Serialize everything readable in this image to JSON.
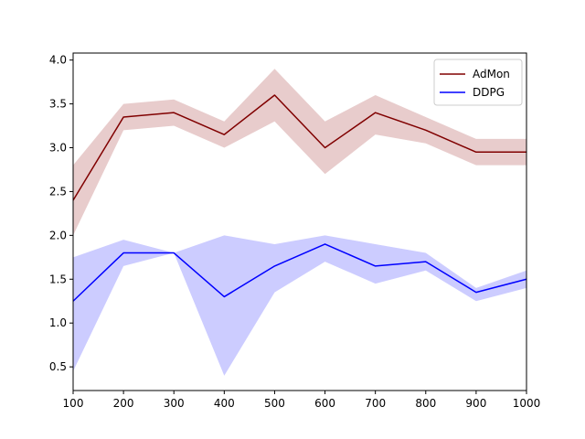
{
  "chart_data": {
    "type": "line",
    "title": "",
    "xlabel": "",
    "ylabel": "",
    "x": [
      100,
      200,
      300,
      400,
      500,
      600,
      700,
      800,
      900,
      1000
    ],
    "xlim": [
      100,
      1000
    ],
    "ylim": [
      0.23,
      4.08
    ],
    "xticks": [
      100,
      200,
      300,
      400,
      500,
      600,
      700,
      800,
      900,
      1000
    ],
    "yticks": [
      0.5,
      1.0,
      1.5,
      2.0,
      2.5,
      3.0,
      3.5,
      4.0
    ],
    "ytick_labels": [
      "0.5",
      "1.0",
      "1.5",
      "2.0",
      "2.5",
      "3.0",
      "3.5",
      "4.0"
    ],
    "grid": false,
    "legend_position": "top-right",
    "series": [
      {
        "name": "AdMon",
        "color": "#800000",
        "band_color": "#e8cccc",
        "values": [
          2.4,
          3.35,
          3.4,
          3.15,
          3.6,
          3.0,
          3.4,
          3.2,
          2.95,
          2.95
        ],
        "lower": [
          2.0,
          3.2,
          3.25,
          3.0,
          3.3,
          2.7,
          3.15,
          3.05,
          2.8,
          2.8
        ],
        "upper": [
          2.8,
          3.5,
          3.55,
          3.3,
          3.9,
          3.3,
          3.6,
          3.35,
          3.1,
          3.1
        ]
      },
      {
        "name": "DDPG",
        "color": "#0000ff",
        "band_color": "#ccccff",
        "values": [
          1.25,
          1.8,
          1.8,
          1.3,
          1.65,
          1.9,
          1.65,
          1.7,
          1.35,
          1.5
        ],
        "lower": [
          0.45,
          1.65,
          1.8,
          0.4,
          1.35,
          1.7,
          1.45,
          1.6,
          1.25,
          1.4
        ],
        "upper": [
          1.75,
          1.95,
          1.8,
          2.0,
          1.9,
          2.0,
          1.9,
          1.8,
          1.4,
          1.6
        ]
      }
    ]
  }
}
